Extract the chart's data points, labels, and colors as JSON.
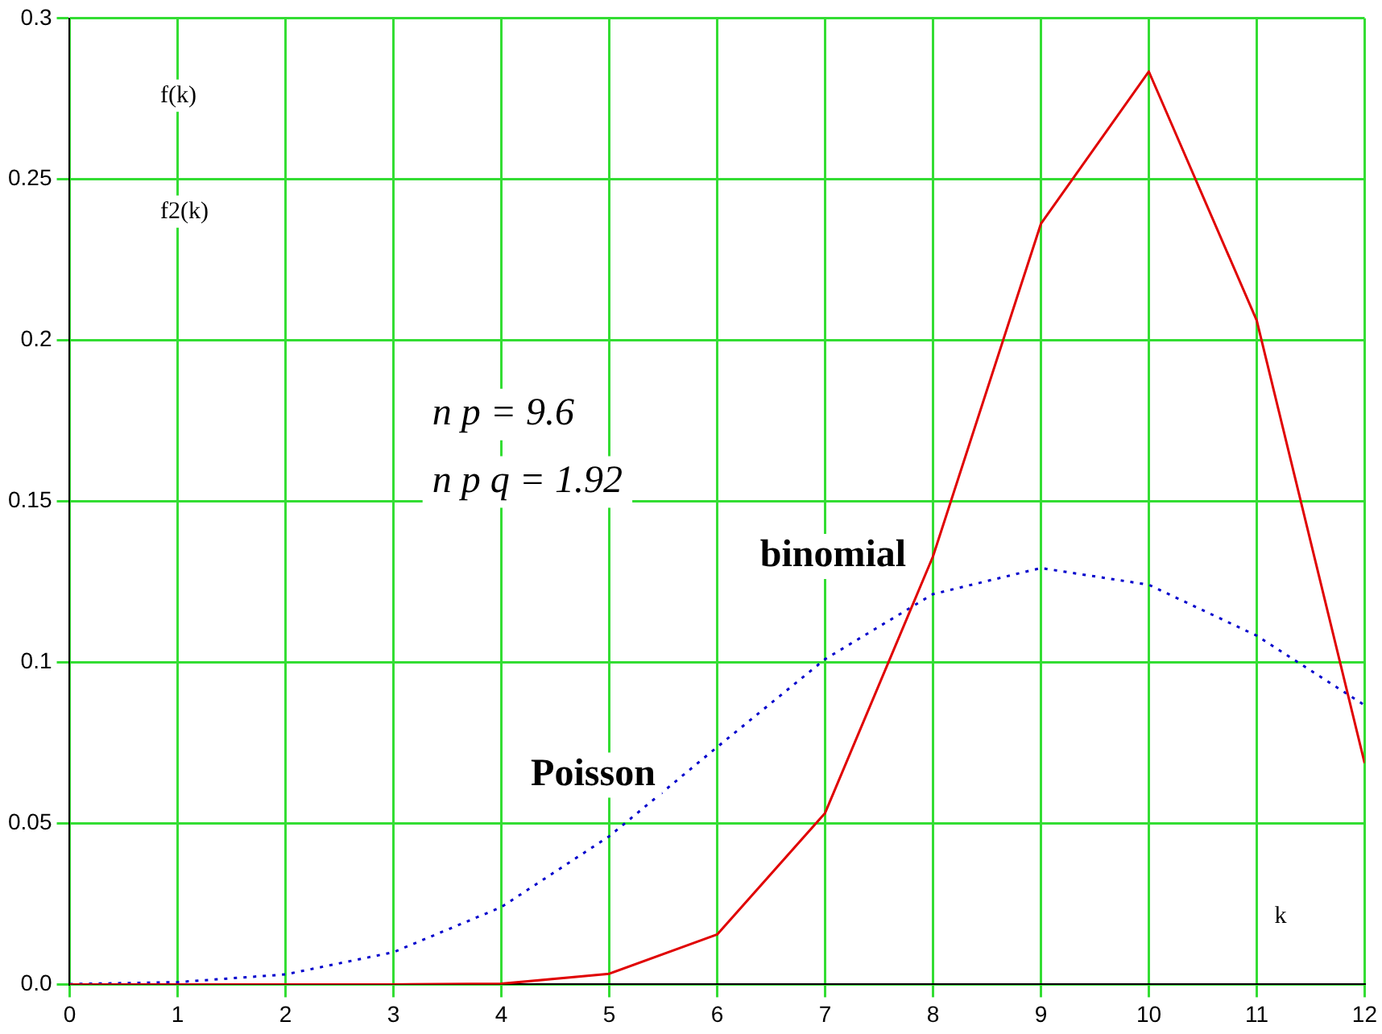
{
  "chart_data": {
    "type": "line",
    "xlabel": "k",
    "x": [
      0,
      1,
      2,
      3,
      4,
      5,
      6,
      7,
      8,
      9,
      10,
      11,
      12
    ],
    "series": [
      {
        "name": "binomial",
        "color": "#e00000",
        "line_style": "solid",
        "values": [
          0,
          0,
          0,
          0,
          0.0002,
          0.0033,
          0.0155,
          0.0532,
          0.1329,
          0.2362,
          0.2835,
          0.2062,
          0.0687
        ]
      },
      {
        "name": "Poisson",
        "color": "#0000cc",
        "line_style": "dotted",
        "values": [
          0.0001,
          0.0007,
          0.0031,
          0.01,
          0.024,
          0.046,
          0.0737,
          0.101,
          0.1212,
          0.1293,
          0.1241,
          0.1083,
          0.0867
        ]
      }
    ],
    "xlim": [
      0,
      12
    ],
    "xticks": [
      0,
      1,
      2,
      3,
      4,
      5,
      6,
      7,
      8,
      9,
      10,
      11,
      12
    ],
    "ylim": [
      0,
      0.3
    ],
    "yticks": [
      {
        "value": 0,
        "label": "0.0"
      },
      0.05,
      0.1,
      0.15,
      0.2,
      0.25,
      0.3
    ],
    "grid": true,
    "legend": false,
    "marker": "none",
    "annotations": [
      "f(k)",
      "f2(k)",
      "n p = 9.6",
      "n p q = 1.92"
    ]
  }
}
